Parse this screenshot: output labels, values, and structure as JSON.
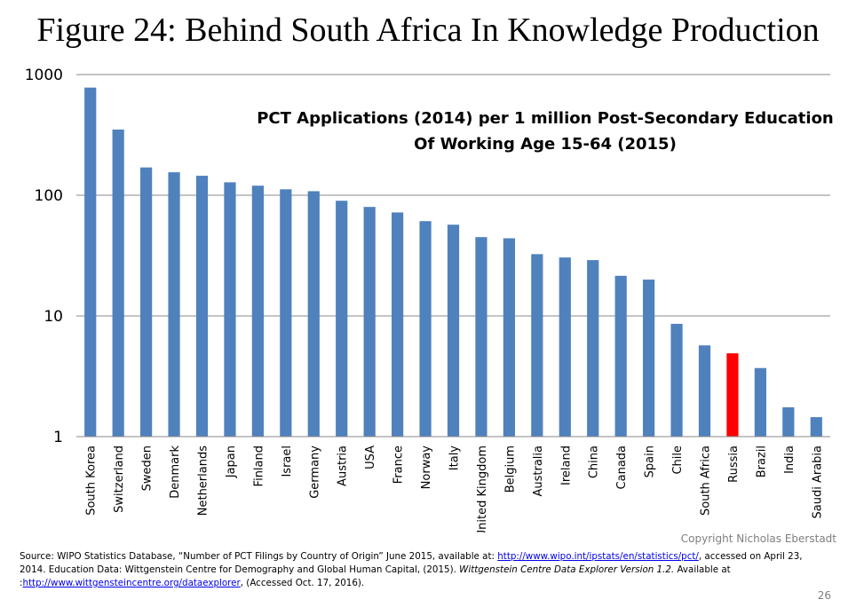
{
  "figure": {
    "title": "Figure 24: Behind South Africa In Knowledge Production",
    "copyright": "Copyright Nicholas Eberstadt",
    "page_number": "26"
  },
  "source": {
    "part1": "Source: WIPO Statistics Database, “Number of PCT Filings by Country of Origin” June 2015, available at: ",
    "link1": "http://www.wipo.int/ipstats/en/statistics/pct/",
    "part2": ", accessed on April 23, 2014. Education Data: Wittgenstein Centre for Demography and Global Human Capital, (2015). ",
    "italic1": "Wittgenstein Centre Data Explorer Version 1.2.",
    "part3": " Available at :",
    "link2": "http://www.wittgensteincentre.org/dataexplorer",
    "part4": ", (Accessed Oct. 17, 2016)."
  },
  "chart_data": {
    "type": "bar",
    "title": "PCT Applications (2014) per 1 million Post-Secondary Education",
    "subtitle": "Of Working Age  15-64 (2015)",
    "xlabel": "",
    "ylabel": "",
    "yscale": "log",
    "ylim": [
      1,
      1000
    ],
    "yticks": [
      "1",
      "10",
      "100",
      "1000"
    ],
    "grid": true,
    "legend": "none",
    "categories": [
      "South Korea",
      "Switzerland",
      "Sweden",
      "Denmark",
      "Netherlands",
      "Japan",
      "Finland",
      "Israel",
      "Germany",
      "Austria",
      "USA",
      "France",
      "Norway",
      "Italy",
      "United Kingdom",
      "Belgium",
      "Australia",
      "Ireland",
      "China",
      "Canada",
      "Spain",
      "Chile",
      "South Africa",
      "Russia",
      "Brazil",
      "India",
      "Saudi Arabia"
    ],
    "values": [
      780,
      350,
      170,
      155,
      145,
      128,
      120,
      112,
      108,
      90,
      80,
      72,
      61,
      57,
      45,
      44,
      32.5,
      30.5,
      29,
      21.5,
      20,
      8.6,
      5.7,
      4.9,
      3.7,
      1.75,
      1.45
    ],
    "bar_color": "#4f81bd",
    "highlight": {
      "category": "Russia",
      "color": "#ff0000"
    }
  }
}
